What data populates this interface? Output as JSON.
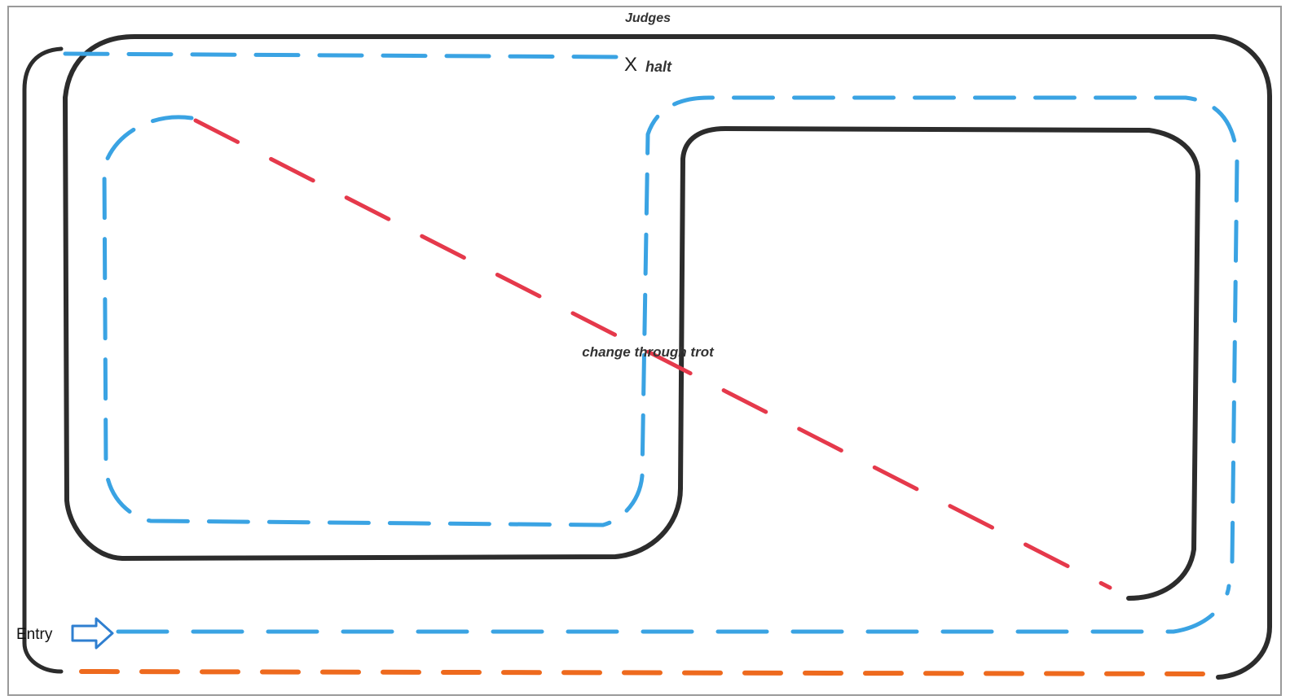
{
  "labels": {
    "judges": "Judges",
    "halt_marker": "X",
    "halt": "halt",
    "change": "change through trot",
    "entry": "Entry"
  },
  "colors": {
    "arena_border": "#9a9a9a",
    "trot_path": "#2c2c2c",
    "walk_path": "#3aa3e3",
    "diagonal": "#e5394b",
    "bottom_line": "#ee6a1e",
    "entry_arrow": "#2f7fd0"
  },
  "icons": {
    "entry_arrow": "right-arrow-outline"
  }
}
